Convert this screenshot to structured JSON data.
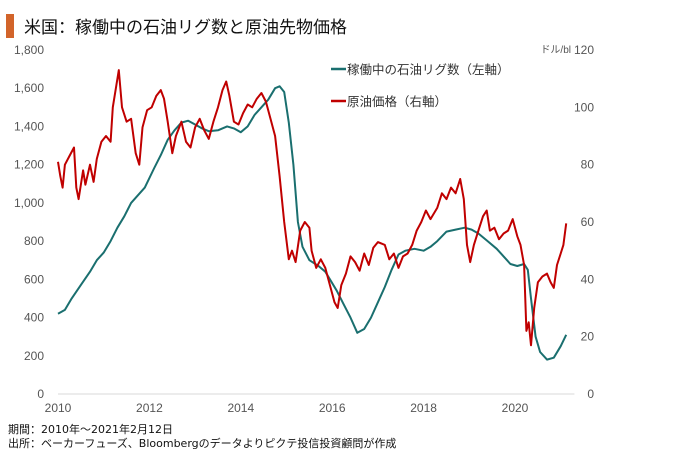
{
  "title": "米国：稼働中の石油リグ数と原油先物価格",
  "footnotes": {
    "period": "期間：2010年～2021年2月12日",
    "source": "出所：ベーカーフューズ、Bloombergのデータよりピクテ投信投資顧問が作成"
  },
  "chart_data": {
    "type": "line",
    "title": "米国：稼働中の石油リグ数と原油先物価格",
    "xlim": [
      2010,
      2021.3
    ],
    "x_ticks": [
      "2010",
      "2012",
      "2014",
      "2016",
      "2018",
      "2020"
    ],
    "y_left": {
      "ylim": [
        0,
        1800
      ],
      "ticks": [
        "0",
        "200",
        "400",
        "600",
        "800",
        "1,000",
        "1,200",
        "1,400",
        "1,600",
        "1,800"
      ]
    },
    "y_right": {
      "ylim": [
        0,
        120
      ],
      "unit": "ドル/bl",
      "ticks": [
        "0",
        "20",
        "40",
        "60",
        "80",
        "100",
        "120"
      ]
    },
    "legend_placement": "top-right",
    "series": [
      {
        "name": "稼働中の石油リグ数（左軸）",
        "axis": "left",
        "color": "#1a6f6f",
        "points": [
          [
            2010,
            420
          ],
          [
            2010.15,
            440
          ],
          [
            2010.3,
            500
          ],
          [
            2010.5,
            570
          ],
          [
            2010.7,
            640
          ],
          [
            2010.85,
            700
          ],
          [
            2011,
            740
          ],
          [
            2011.15,
            800
          ],
          [
            2011.3,
            870
          ],
          [
            2011.45,
            930
          ],
          [
            2011.6,
            1000
          ],
          [
            2011.75,
            1040
          ],
          [
            2011.9,
            1080
          ],
          [
            2012.1,
            1180
          ],
          [
            2012.25,
            1250
          ],
          [
            2012.4,
            1330
          ],
          [
            2012.55,
            1380
          ],
          [
            2012.7,
            1420
          ],
          [
            2012.85,
            1430
          ],
          [
            2013,
            1410
          ],
          [
            2013.15,
            1390
          ],
          [
            2013.3,
            1375
          ],
          [
            2013.5,
            1380
          ],
          [
            2013.7,
            1400
          ],
          [
            2013.85,
            1390
          ],
          [
            2014,
            1370
          ],
          [
            2014.15,
            1400
          ],
          [
            2014.3,
            1460
          ],
          [
            2014.45,
            1500
          ],
          [
            2014.6,
            1540
          ],
          [
            2014.75,
            1600
          ],
          [
            2014.85,
            1610
          ],
          [
            2014.95,
            1580
          ],
          [
            2015.05,
            1420
          ],
          [
            2015.15,
            1200
          ],
          [
            2015.25,
            900
          ],
          [
            2015.35,
            770
          ],
          [
            2015.5,
            700
          ],
          [
            2015.7,
            670
          ],
          [
            2015.85,
            640
          ],
          [
            2015.95,
            600
          ],
          [
            2016.1,
            540
          ],
          [
            2016.25,
            470
          ],
          [
            2016.4,
            400
          ],
          [
            2016.55,
            320
          ],
          [
            2016.7,
            340
          ],
          [
            2016.85,
            400
          ],
          [
            2017,
            480
          ],
          [
            2017.15,
            560
          ],
          [
            2017.3,
            650
          ],
          [
            2017.45,
            730
          ],
          [
            2017.6,
            750
          ],
          [
            2017.8,
            760
          ],
          [
            2018,
            750
          ],
          [
            2018.15,
            770
          ],
          [
            2018.3,
            800
          ],
          [
            2018.5,
            850
          ],
          [
            2018.7,
            860
          ],
          [
            2018.9,
            870
          ],
          [
            2019.05,
            860
          ],
          [
            2019.2,
            840
          ],
          [
            2019.4,
            800
          ],
          [
            2019.6,
            760
          ],
          [
            2019.75,
            720
          ],
          [
            2019.9,
            680
          ],
          [
            2020.05,
            670
          ],
          [
            2020.2,
            680
          ],
          [
            2020.28,
            650
          ],
          [
            2020.35,
            500
          ],
          [
            2020.45,
            300
          ],
          [
            2020.55,
            220
          ],
          [
            2020.7,
            180
          ],
          [
            2020.85,
            190
          ],
          [
            2021,
            250
          ],
          [
            2021.12,
            310
          ]
        ]
      },
      {
        "name": "原油価格（右軸）",
        "axis": "right",
        "color": "#c00000",
        "points": [
          [
            2010,
            81
          ],
          [
            2010.05,
            76
          ],
          [
            2010.1,
            72
          ],
          [
            2010.15,
            80
          ],
          [
            2010.25,
            83
          ],
          [
            2010.35,
            86
          ],
          [
            2010.4,
            72
          ],
          [
            2010.45,
            68
          ],
          [
            2010.55,
            78
          ],
          [
            2010.6,
            73
          ],
          [
            2010.7,
            80
          ],
          [
            2010.78,
            74
          ],
          [
            2010.85,
            82
          ],
          [
            2010.95,
            88
          ],
          [
            2011.05,
            90
          ],
          [
            2011.15,
            88
          ],
          [
            2011.2,
            100
          ],
          [
            2011.28,
            108
          ],
          [
            2011.33,
            113
          ],
          [
            2011.4,
            100
          ],
          [
            2011.5,
            95
          ],
          [
            2011.6,
            96
          ],
          [
            2011.7,
            84
          ],
          [
            2011.78,
            80
          ],
          [
            2011.85,
            93
          ],
          [
            2011.95,
            99
          ],
          [
            2012.05,
            100
          ],
          [
            2012.15,
            104
          ],
          [
            2012.25,
            106
          ],
          [
            2012.32,
            103
          ],
          [
            2012.4,
            95
          ],
          [
            2012.5,
            84
          ],
          [
            2012.58,
            90
          ],
          [
            2012.7,
            95
          ],
          [
            2012.8,
            88
          ],
          [
            2012.9,
            86
          ],
          [
            2013,
            93
          ],
          [
            2013.1,
            96
          ],
          [
            2013.2,
            92
          ],
          [
            2013.3,
            89
          ],
          [
            2013.4,
            95
          ],
          [
            2013.5,
            100
          ],
          [
            2013.6,
            106
          ],
          [
            2013.68,
            109
          ],
          [
            2013.75,
            104
          ],
          [
            2013.85,
            95
          ],
          [
            2013.95,
            94
          ],
          [
            2014.05,
            98
          ],
          [
            2014.15,
            101
          ],
          [
            2014.25,
            100
          ],
          [
            2014.35,
            103
          ],
          [
            2014.45,
            105
          ],
          [
            2014.55,
            102
          ],
          [
            2014.65,
            96
          ],
          [
            2014.75,
            90
          ],
          [
            2014.85,
            76
          ],
          [
            2014.95,
            60
          ],
          [
            2015.05,
            47
          ],
          [
            2015.12,
            50
          ],
          [
            2015.2,
            46
          ],
          [
            2015.3,
            57
          ],
          [
            2015.4,
            60
          ],
          [
            2015.5,
            58
          ],
          [
            2015.55,
            50
          ],
          [
            2015.65,
            44
          ],
          [
            2015.75,
            47
          ],
          [
            2015.85,
            44
          ],
          [
            2015.95,
            38
          ],
          [
            2016.05,
            32
          ],
          [
            2016.12,
            30
          ],
          [
            2016.2,
            38
          ],
          [
            2016.3,
            42
          ],
          [
            2016.4,
            48
          ],
          [
            2016.5,
            46
          ],
          [
            2016.6,
            43
          ],
          [
            2016.7,
            49
          ],
          [
            2016.8,
            45
          ],
          [
            2016.9,
            51
          ],
          [
            2017,
            53
          ],
          [
            2017.15,
            52
          ],
          [
            2017.25,
            47
          ],
          [
            2017.35,
            49
          ],
          [
            2017.45,
            44
          ],
          [
            2017.55,
            48
          ],
          [
            2017.65,
            49
          ],
          [
            2017.75,
            52
          ],
          [
            2017.85,
            57
          ],
          [
            2017.95,
            60
          ],
          [
            2018.05,
            64
          ],
          [
            2018.15,
            61
          ],
          [
            2018.3,
            65
          ],
          [
            2018.4,
            70
          ],
          [
            2018.5,
            68
          ],
          [
            2018.6,
            72
          ],
          [
            2018.7,
            70
          ],
          [
            2018.8,
            75
          ],
          [
            2018.88,
            68
          ],
          [
            2018.95,
            52
          ],
          [
            2019.02,
            46
          ],
          [
            2019.1,
            52
          ],
          [
            2019.2,
            57
          ],
          [
            2019.3,
            62
          ],
          [
            2019.38,
            64
          ],
          [
            2019.45,
            57
          ],
          [
            2019.55,
            58
          ],
          [
            2019.65,
            54
          ],
          [
            2019.75,
            56
          ],
          [
            2019.85,
            57
          ],
          [
            2019.95,
            61
          ],
          [
            2020.05,
            55
          ],
          [
            2020.12,
            52
          ],
          [
            2020.2,
            45
          ],
          [
            2020.25,
            22
          ],
          [
            2020.3,
            25
          ],
          [
            2020.35,
            17
          ],
          [
            2020.42,
            30
          ],
          [
            2020.5,
            39
          ],
          [
            2020.6,
            41
          ],
          [
            2020.7,
            42
          ],
          [
            2020.78,
            39
          ],
          [
            2020.85,
            37
          ],
          [
            2020.92,
            45
          ],
          [
            2021,
            49
          ],
          [
            2021.06,
            52
          ],
          [
            2021.12,
            59.5
          ]
        ]
      }
    ]
  }
}
